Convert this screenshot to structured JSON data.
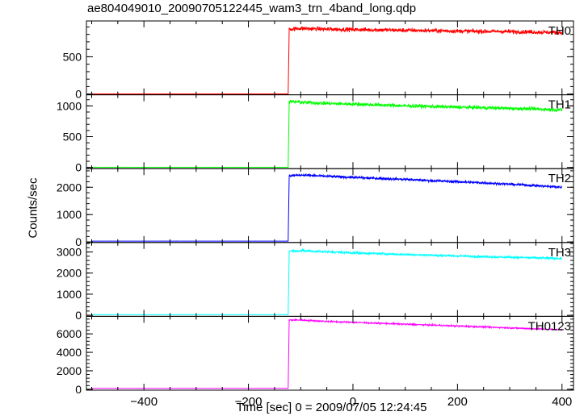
{
  "chart_data": {
    "type": "line",
    "title": "ae804049010_20090705122445_wam3_trn_4band_long.qdp",
    "xlabel": "Time [sec] 0 = 2009/07/05 12:24:45",
    "ylabel": "Counts/sec",
    "xlim": [
      -510,
      422
    ],
    "x_ticks": [
      -400,
      -200,
      0,
      200,
      400
    ],
    "x_tick_labels": [
      "−400",
      "−200",
      "0",
      "200",
      "400"
    ],
    "grid": false,
    "panels": [
      {
        "name": "TH0",
        "color": "#ff0000",
        "ylim": [
          -10,
          980
        ],
        "y_ticks": [
          0,
          500
        ],
        "y_tick_labels": [
          "0",
          "500"
        ],
        "points": [
          [
            -500,
            2
          ],
          [
            -124,
            2
          ],
          [
            -122,
            870
          ],
          [
            -100,
            880
          ],
          [
            -50,
            870
          ],
          [
            0,
            865
          ],
          [
            50,
            860
          ],
          [
            100,
            855
          ],
          [
            150,
            850
          ],
          [
            200,
            845
          ],
          [
            250,
            840
          ],
          [
            300,
            838
          ],
          [
            350,
            830
          ],
          [
            400,
            825
          ]
        ]
      },
      {
        "name": "TH1",
        "color": "#00ff00",
        "ylim": [
          -20,
          1180
        ],
        "y_ticks": [
          0,
          500,
          1000
        ],
        "y_tick_labels": [
          "0",
          "500",
          "1000"
        ],
        "points": [
          [
            -500,
            3
          ],
          [
            -124,
            3
          ],
          [
            -122,
            1070
          ],
          [
            -100,
            1060
          ],
          [
            -50,
            1040
          ],
          [
            0,
            1030
          ],
          [
            50,
            1015
          ],
          [
            100,
            1000
          ],
          [
            150,
            990
          ],
          [
            200,
            980
          ],
          [
            250,
            970
          ],
          [
            300,
            960
          ],
          [
            350,
            950
          ],
          [
            400,
            935
          ]
        ]
      },
      {
        "name": "TH2",
        "color": "#0000ff",
        "ylim": [
          -20,
          2680
        ],
        "y_ticks": [
          0,
          1000,
          2000
        ],
        "y_tick_labels": [
          "0",
          "1000",
          "2000"
        ],
        "points": [
          [
            -500,
            30
          ],
          [
            -124,
            30
          ],
          [
            -122,
            2420
          ],
          [
            -100,
            2450
          ],
          [
            -50,
            2400
          ],
          [
            0,
            2360
          ],
          [
            50,
            2320
          ],
          [
            100,
            2290
          ],
          [
            150,
            2240
          ],
          [
            200,
            2200
          ],
          [
            250,
            2160
          ],
          [
            300,
            2110
          ],
          [
            350,
            2060
          ],
          [
            400,
            2000
          ]
        ]
      },
      {
        "name": "TH3",
        "color": "#00ffff",
        "ylim": [
          -50,
          3450
        ],
        "y_ticks": [
          0,
          1000,
          2000,
          3000
        ],
        "y_tick_labels": [
          "0",
          "1000",
          "2000",
          "3000"
        ],
        "points": [
          [
            -500,
            30
          ],
          [
            -124,
            30
          ],
          [
            -122,
            3050
          ],
          [
            -100,
            3060
          ],
          [
            -50,
            3010
          ],
          [
            0,
            2960
          ],
          [
            50,
            2920
          ],
          [
            100,
            2880
          ],
          [
            150,
            2850
          ],
          [
            200,
            2810
          ],
          [
            250,
            2780
          ],
          [
            300,
            2750
          ],
          [
            350,
            2720
          ],
          [
            400,
            2690
          ]
        ]
      },
      {
        "name": "TH0123",
        "color": "#ff00ff",
        "ylim": [
          -100,
          7900
        ],
        "y_ticks": [
          0,
          2000,
          4000,
          6000
        ],
        "y_tick_labels": [
          "0",
          "2000",
          "4000",
          "6000"
        ],
        "points": [
          [
            -500,
            100
          ],
          [
            -124,
            100
          ],
          [
            -122,
            7500
          ],
          [
            -100,
            7500
          ],
          [
            -50,
            7350
          ],
          [
            0,
            7250
          ],
          [
            50,
            7150
          ],
          [
            100,
            7050
          ],
          [
            150,
            6950
          ],
          [
            200,
            6850
          ],
          [
            250,
            6750
          ],
          [
            300,
            6650
          ],
          [
            350,
            6550
          ],
          [
            400,
            6450
          ]
        ]
      }
    ]
  }
}
